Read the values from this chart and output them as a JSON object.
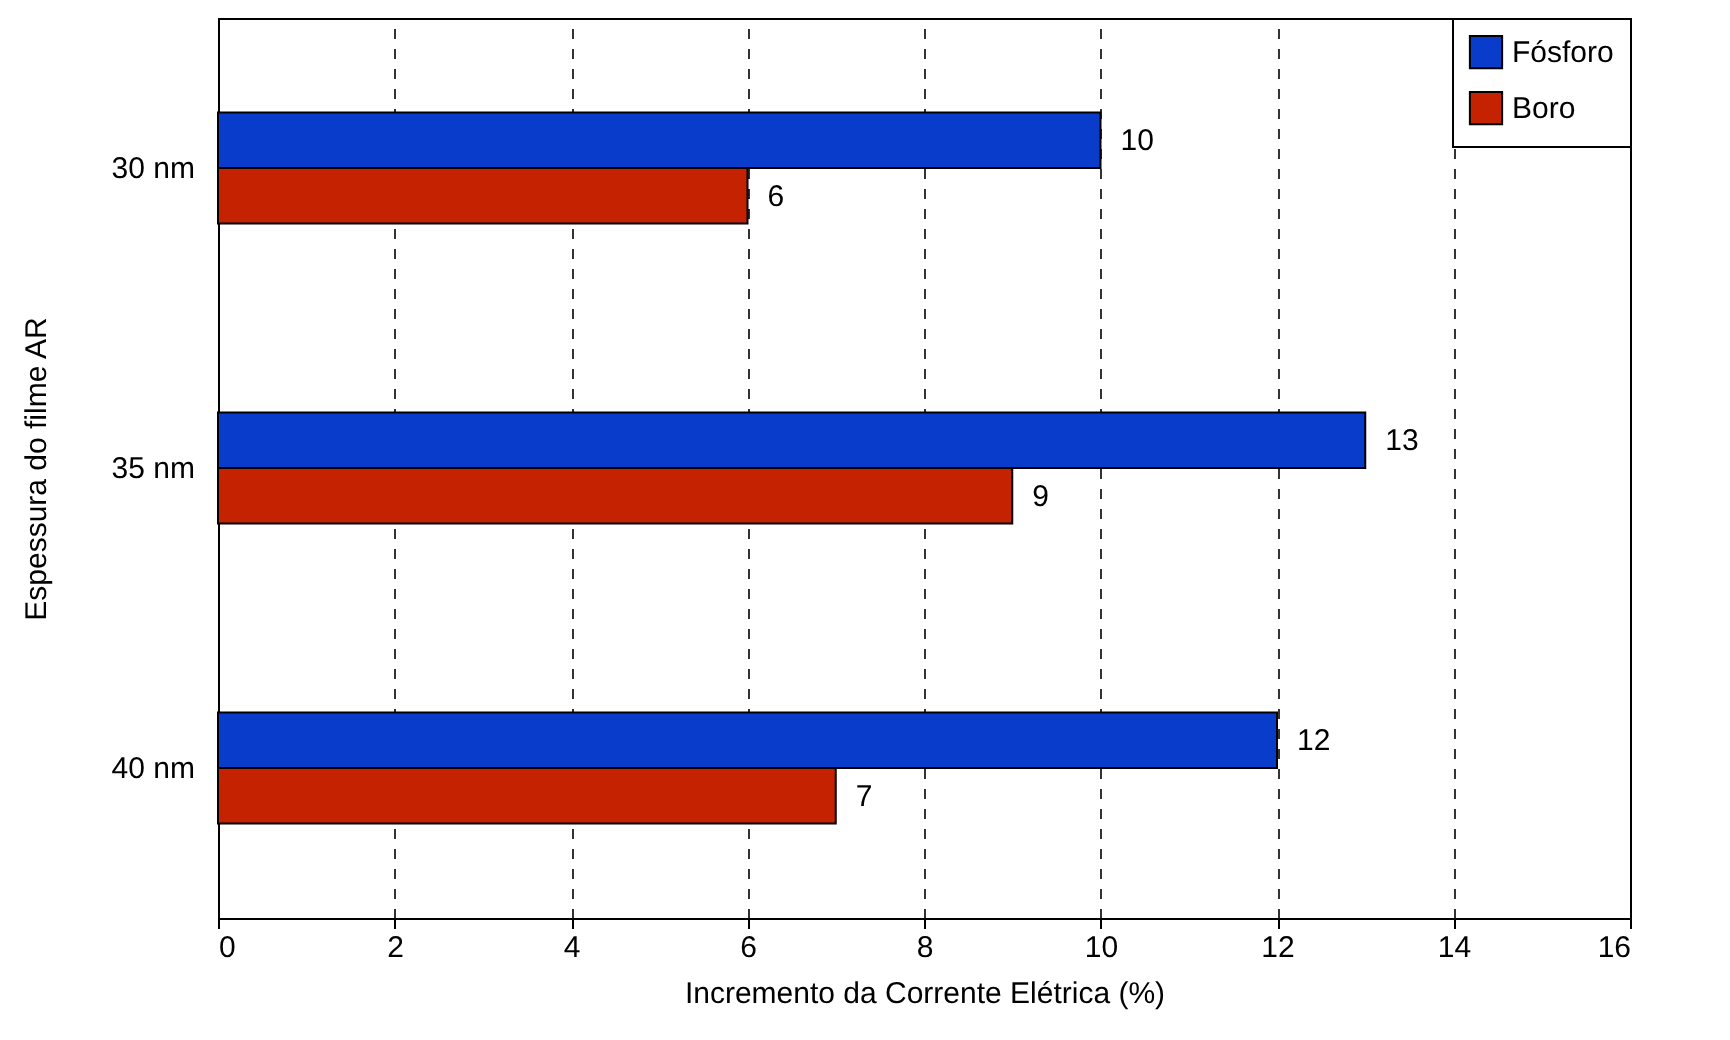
{
  "chart_data": {
    "type": "bar",
    "orientation": "horizontal",
    "xlabel": "Incremento da Corrente Elétrica (%)",
    "ylabel": "Espessura do filme AR",
    "categories": [
      "30 nm",
      "35 nm",
      "40 nm"
    ],
    "series": [
      {
        "name": "Fósforo",
        "color": "#0a3ccc",
        "values": [
          10,
          13,
          12
        ]
      },
      {
        "name": "Boro",
        "color": "#c42200",
        "values": [
          6,
          9,
          7
        ]
      }
    ],
    "xlim": [
      0,
      16
    ],
    "xticks": [
      0,
      2,
      4,
      6,
      8,
      10,
      12,
      14,
      16
    ],
    "grid": "x",
    "legend": "top right",
    "data_labels": true
  }
}
